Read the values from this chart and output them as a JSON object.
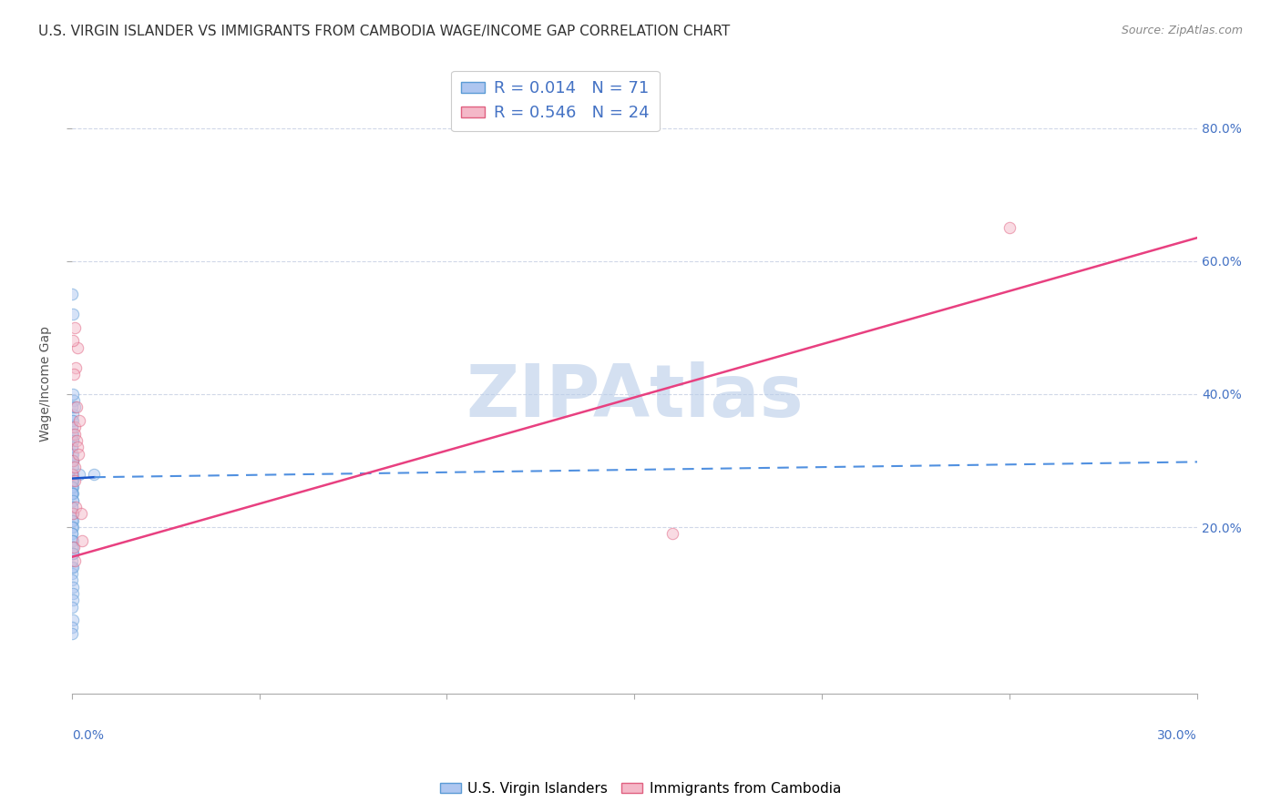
{
  "title": "U.S. VIRGIN ISLANDER VS IMMIGRANTS FROM CAMBODIA WAGE/INCOME GAP CORRELATION CHART",
  "source": "Source: ZipAtlas.com",
  "ylabel": "Wage/Income Gap",
  "yticks_right": [
    0.2,
    0.4,
    0.6,
    0.8
  ],
  "ytick_labels_right": [
    "20.0%",
    "40.0%",
    "60.0%",
    "80.0%"
  ],
  "xlim": [
    0.0,
    0.3
  ],
  "ylim": [
    -0.05,
    0.88
  ],
  "watermark": "ZIPAtlas",
  "watermark_color": "#b8cce8",
  "blue_scatter_x": [
    0.0002,
    0.0003,
    0.0004,
    0.0002,
    0.0003,
    0.0002,
    0.0004,
    0.0003,
    0.0002,
    0.0005,
    0.0002,
    0.0003,
    0.0002,
    0.0004,
    0.0002,
    0.0003,
    0.0002,
    0.0002,
    0.0003,
    0.0002,
    0.0002,
    0.0003,
    0.0004,
    0.0002,
    0.0003,
    0.0002,
    0.0002,
    0.0003,
    0.0002,
    0.0004,
    0.0002,
    0.0003,
    0.0002,
    0.0004,
    0.0002,
    0.0002,
    0.0003,
    0.0002,
    0.0003,
    0.0002,
    0.0002,
    0.0003,
    0.0002,
    0.0003,
    0.0002,
    0.0004,
    0.0002,
    0.0002,
    0.0002,
    0.0003,
    0.0002,
    0.0003,
    0.0002,
    0.0002,
    0.0003,
    0.0002,
    0.0002,
    0.0002,
    0.0003,
    0.0004,
    0.0003,
    0.0002,
    0.0003,
    0.0002,
    0.0004,
    0.0002,
    0.0003,
    0.006,
    0.0002,
    0.002,
    0.0007
  ],
  "blue_scatter_y": [
    0.55,
    0.52,
    0.3,
    0.36,
    0.37,
    0.35,
    0.34,
    0.33,
    0.32,
    0.39,
    0.31,
    0.3,
    0.29,
    0.28,
    0.28,
    0.27,
    0.27,
    0.26,
    0.26,
    0.25,
    0.25,
    0.24,
    0.4,
    0.38,
    0.36,
    0.35,
    0.34,
    0.33,
    0.32,
    0.31,
    0.3,
    0.29,
    0.28,
    0.27,
    0.27,
    0.26,
    0.25,
    0.25,
    0.24,
    0.23,
    0.23,
    0.22,
    0.22,
    0.21,
    0.21,
    0.2,
    0.2,
    0.19,
    0.19,
    0.18,
    0.18,
    0.17,
    0.17,
    0.16,
    0.16,
    0.14,
    0.13,
    0.12,
    0.11,
    0.1,
    0.09,
    0.08,
    0.06,
    0.05,
    0.14,
    0.15,
    0.16,
    0.28,
    0.04,
    0.28,
    0.38
  ],
  "pink_scatter_x": [
    0.0002,
    0.0003,
    0.0005,
    0.0007,
    0.0004,
    0.0008,
    0.0009,
    0.0007,
    0.001,
    0.0013,
    0.0016,
    0.0009,
    0.002,
    0.0012,
    0.0015,
    0.0017,
    0.0008,
    0.0011,
    0.0024,
    0.0027,
    0.0005,
    0.0004,
    0.25,
    0.16
  ],
  "pink_scatter_y": [
    0.28,
    0.22,
    0.17,
    0.15,
    0.3,
    0.35,
    0.34,
    0.27,
    0.44,
    0.38,
    0.47,
    0.29,
    0.36,
    0.33,
    0.32,
    0.31,
    0.5,
    0.23,
    0.22,
    0.18,
    0.43,
    0.48,
    0.65,
    0.19
  ],
  "blue_solid_line_x": [
    0.0,
    0.006
  ],
  "blue_solid_line_y": [
    0.273,
    0.275
  ],
  "blue_dashed_line_x": [
    0.006,
    0.3
  ],
  "blue_dashed_line_y": [
    0.275,
    0.298
  ],
  "pink_line_x": [
    0.0,
    0.3
  ],
  "pink_line_y": [
    0.155,
    0.635
  ],
  "dot_size": 80,
  "dot_alpha": 0.5,
  "grid_color": "#d0d8e8",
  "bg_color": "#ffffff",
  "title_fontsize": 11,
  "axis_label_fontsize": 10,
  "tick_fontsize": 10,
  "source_fontsize": 9,
  "legend_r1": "R = 0.014",
  "legend_n1": "N = 71",
  "legend_r2": "R = 0.546",
  "legend_n2": "N = 24",
  "bottom_label1": "U.S. Virgin Islanders",
  "bottom_label2": "Immigrants from Cambodia"
}
